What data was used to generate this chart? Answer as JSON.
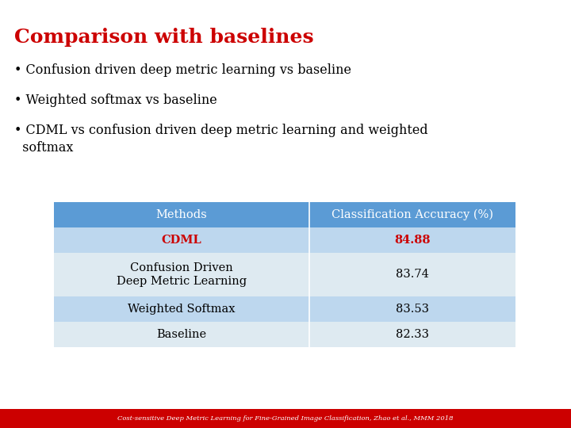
{
  "title": "Comparison with baselines",
  "title_color": "#cc0000",
  "title_fontsize": 18,
  "bullet_points": [
    "Confusion driven deep metric learning vs baseline",
    "Weighted softmax vs baseline",
    "CDML vs confusion driven deep metric learning and weighted\n  softmax"
  ],
  "bullet_fontsize": 11.5,
  "table_header": [
    "Methods",
    "Classification Accuracy (%)"
  ],
  "table_rows": [
    [
      "CDML",
      "84.88"
    ],
    [
      "Confusion Driven\nDeep Metric Learning",
      "83.74"
    ],
    [
      "Weighted Softmax",
      "83.53"
    ],
    [
      "Baseline",
      "82.33"
    ]
  ],
  "header_bg": "#5b9bd5",
  "header_text_color": "#ffffff",
  "row1_bg": "#bdd7ee",
  "row2_bg": "#deeaf1",
  "cdml_text_color": "#cc0000",
  "normal_text_color": "#000000",
  "footer_text": "Cost-sensitive Deep Metric Learning for Fine-Grained Image Classification, Zhao et al., MMM 2018",
  "footer_bg": "#cc0000",
  "footer_text_color": "#ffffff",
  "background_color": "#ffffff"
}
